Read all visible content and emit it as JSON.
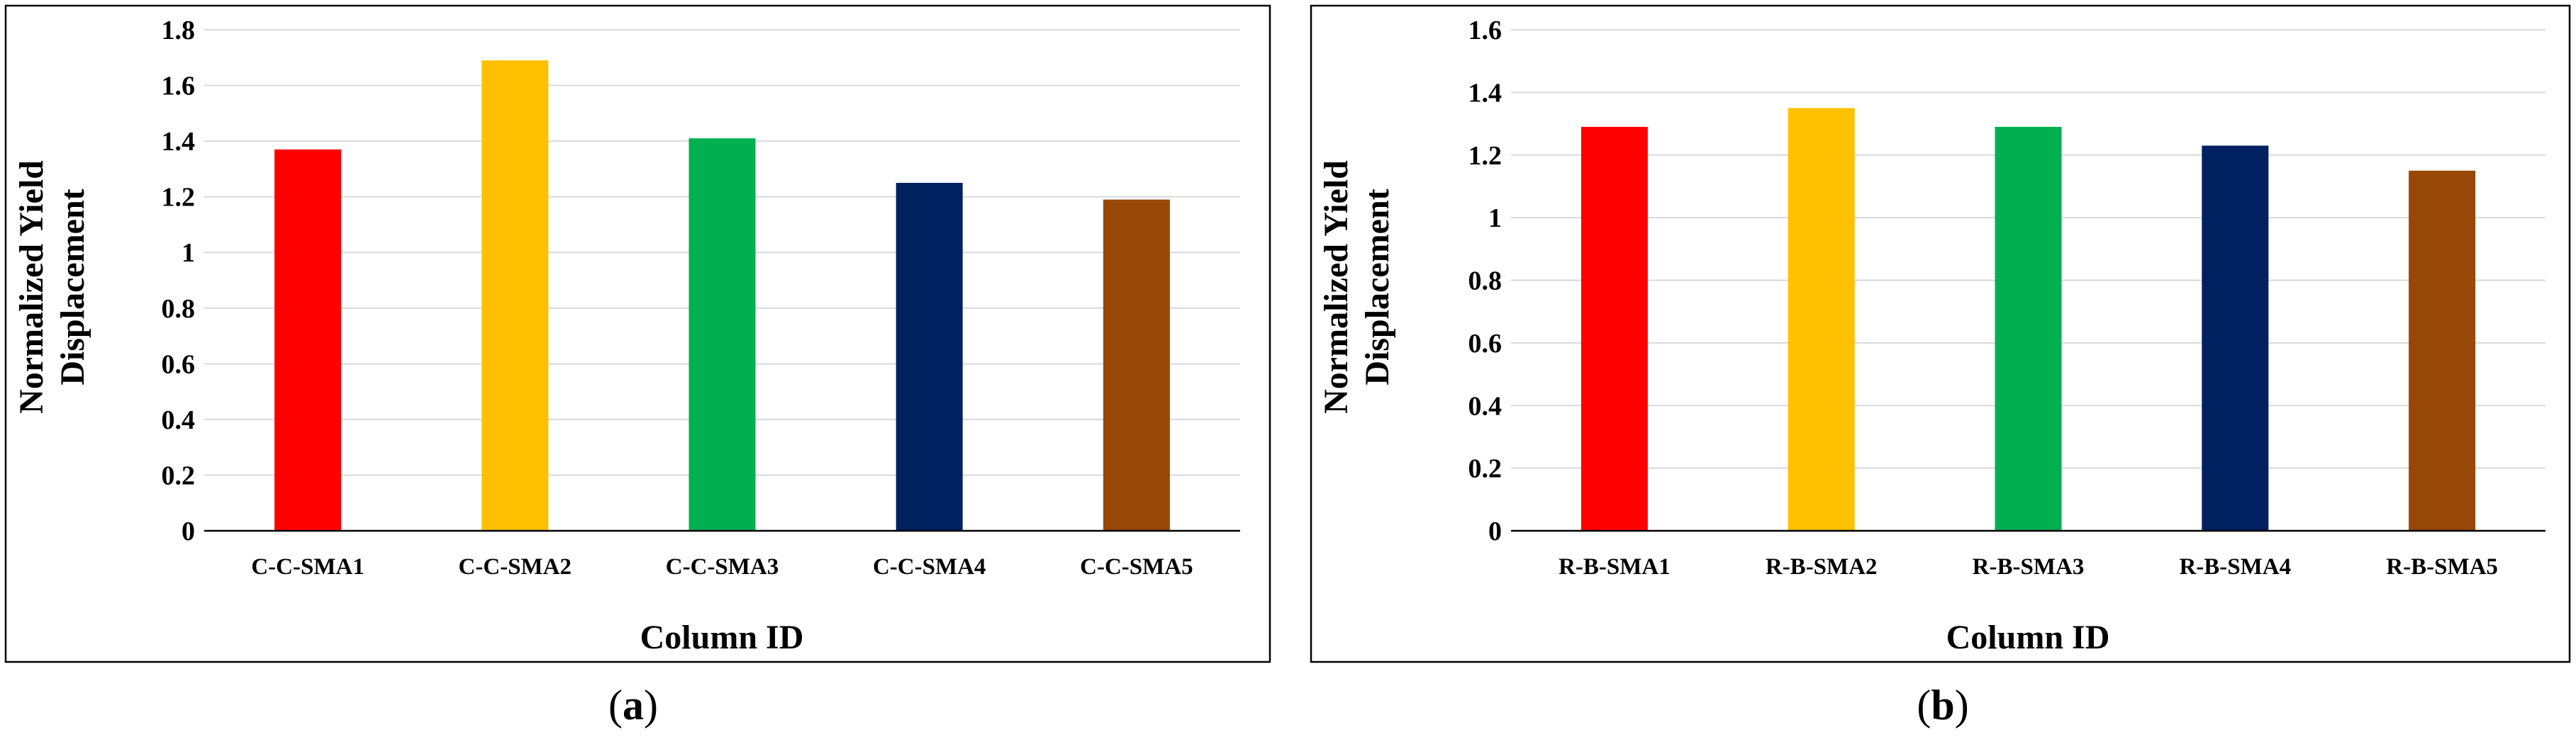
{
  "chart_data": [
    {
      "type": "bar",
      "title": "",
      "panel_label": "a",
      "xlabel": "Column ID",
      "ylabel_lines": [
        "Normalized Yield",
        "Displacement"
      ],
      "ylim": [
        0,
        1.8
      ],
      "yticks": [
        0,
        0.2,
        0.4,
        0.6,
        0.8,
        1,
        1.2,
        1.4,
        1.6,
        1.8
      ],
      "ytick_labels": [
        "0",
        "0.2",
        "0.4",
        "0.6",
        "0.8",
        "1",
        "1.2",
        "1.4",
        "1.6",
        "1.8"
      ],
      "grid": true,
      "categories": [
        "C-C-SMA1",
        "C-C-SMA2",
        "C-C-SMA3",
        "C-C-SMA4",
        "C-C-SMA5"
      ],
      "values": [
        1.37,
        1.69,
        1.41,
        1.25,
        1.19
      ],
      "colors": [
        "#ff0000",
        "#ffc000",
        "#00b050",
        "#002060",
        "#974806"
      ]
    },
    {
      "type": "bar",
      "title": "",
      "panel_label": "b",
      "xlabel": "Column ID",
      "ylabel_lines": [
        "Normalized Yield",
        "Displacement"
      ],
      "ylim": [
        0,
        1.6
      ],
      "yticks": [
        0,
        0.2,
        0.4,
        0.6,
        0.8,
        1,
        1.2,
        1.4,
        1.6
      ],
      "ytick_labels": [
        "0",
        "0.2",
        "0.4",
        "0.6",
        "0.8",
        "1",
        "1.2",
        "1.4",
        "1.6"
      ],
      "grid": true,
      "categories": [
        "R-B-SMA1",
        "R-B-SMA2",
        "R-B-SMA3",
        "R-B-SMA4",
        "R-B-SMA5"
      ],
      "values": [
        1.29,
        1.35,
        1.29,
        1.23,
        1.15
      ],
      "colors": [
        "#ff0000",
        "#ffc000",
        "#00b050",
        "#002060",
        "#974806"
      ]
    }
  ]
}
